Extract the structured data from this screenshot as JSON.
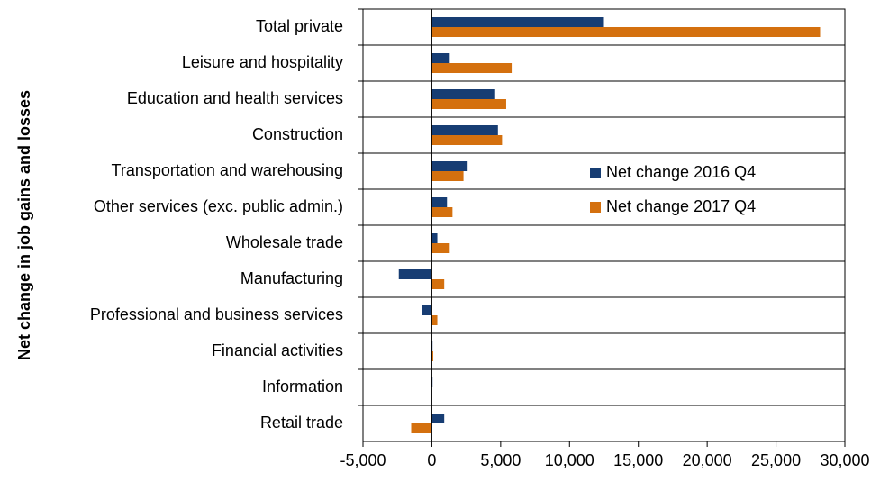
{
  "chart_data": {
    "type": "hbar",
    "y_label": "Net change in job gains and losses",
    "categories": [
      "Total private",
      "Leisure and hospitality",
      "Education and health services",
      "Construction",
      "Transportation and warehousing",
      "Other services (exc. public admin.)",
      "Wholesale trade",
      "Manufacturing",
      "Professional and business services",
      "Financial activities",
      "Information",
      "Retail trade"
    ],
    "series": [
      {
        "name": "Net change 2016 Q4",
        "color": "#173d73",
        "values": [
          12500,
          1300,
          4600,
          4800,
          2600,
          1100,
          400,
          -2400,
          -700,
          50,
          50,
          900
        ]
      },
      {
        "name": "Net change 2017 Q4",
        "color": "#d4700e",
        "values": [
          28200,
          5800,
          5400,
          5100,
          2300,
          1500,
          1300,
          900,
          400,
          100,
          0,
          -1500
        ]
      }
    ],
    "xlim": [
      -5000,
      30000
    ],
    "xticks": [
      {
        "value": -5000,
        "label": "-5,000"
      },
      0,
      {
        "value": 5000,
        "label": "5,000"
      },
      {
        "value": 10000,
        "label": "10,000"
      },
      {
        "value": 15000,
        "label": "15,000"
      },
      {
        "value": 20000,
        "label": "20,000"
      },
      {
        "value": 25000,
        "label": "25,000"
      },
      {
        "value": 30000,
        "label": "30,000"
      }
    ],
    "legend": "right"
  }
}
